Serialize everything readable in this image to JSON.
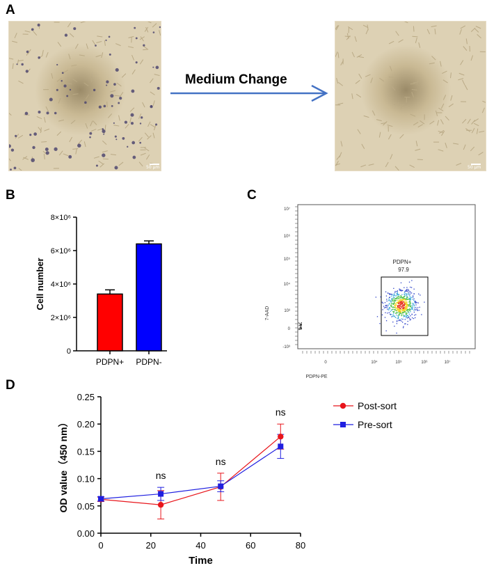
{
  "panels": {
    "a": "A",
    "b": "B",
    "c": "C",
    "d": "D"
  },
  "panel_a": {
    "arrow_label": "Medium Change",
    "scale_bar_left": "50 μm",
    "scale_bar_right": "50 μm",
    "colors": {
      "arrow": "#4472c4",
      "field": "#ddd1b4",
      "center": "#9a8a68"
    }
  },
  "panel_c": {
    "gate_label": "PDPN+",
    "gate_value": "97.9",
    "xlabel": "PDPN-PE",
    "ylabel": "7-AAD",
    "x_ticks": [
      "0",
      "10⁴",
      "10⁵",
      "10⁶",
      "10⁷"
    ],
    "y_ticks": [
      "10⁷",
      "10⁶",
      "10⁵",
      "10⁴",
      "10³",
      "0",
      "-10³"
    ]
  },
  "chart_data": [
    {
      "type": "bar",
      "panel": "B",
      "categories": [
        "PDPN+",
        "PDPN-"
      ],
      "values": [
        3400000,
        6400000
      ],
      "errors": [
        250000,
        180000
      ],
      "colors": [
        "#ff0000",
        "#0000ff"
      ],
      "ylabel": "Cell number",
      "xlabel": "",
      "ylim": [
        0,
        8000000
      ],
      "y_ticks": [
        0,
        2000000,
        4000000,
        6000000,
        8000000
      ],
      "y_tick_labels": [
        "0",
        "2×10⁶",
        "4×10⁶",
        "6×10⁶",
        "8×10⁶"
      ]
    },
    {
      "type": "line",
      "panel": "D",
      "x": [
        0,
        24,
        48,
        72
      ],
      "series": [
        {
          "name": "Post-sort",
          "color": "#e8151b",
          "marker": "circle",
          "values": [
            0.062,
            0.052,
            0.085,
            0.177
          ],
          "errors": [
            0.004,
            0.026,
            0.025,
            0.023
          ]
        },
        {
          "name": "Pre-sort",
          "color": "#1f1fe0",
          "marker": "square",
          "values": [
            0.063,
            0.072,
            0.086,
            0.159
          ],
          "errors": [
            0.004,
            0.012,
            0.01,
            0.022
          ]
        }
      ],
      "annotations": [
        {
          "x": 24,
          "text": "ns"
        },
        {
          "x": 48,
          "text": "ns"
        },
        {
          "x": 72,
          "text": "ns"
        }
      ],
      "xlabel": "Time",
      "ylabel": "OD value（450 nm）",
      "xlim": [
        0,
        80
      ],
      "ylim": [
        0,
        0.25
      ],
      "x_ticks": [
        0,
        20,
        40,
        60,
        80
      ],
      "x_tick_labels": [
        "0",
        "20",
        "40",
        "60",
        "80"
      ],
      "y_ticks": [
        0,
        0.05,
        0.1,
        0.15,
        0.2,
        0.25
      ],
      "y_tick_labels": [
        "0.00",
        "0.05",
        "0.10",
        "0.15",
        "0.20",
        "0.25"
      ],
      "legend": "top-right"
    }
  ]
}
